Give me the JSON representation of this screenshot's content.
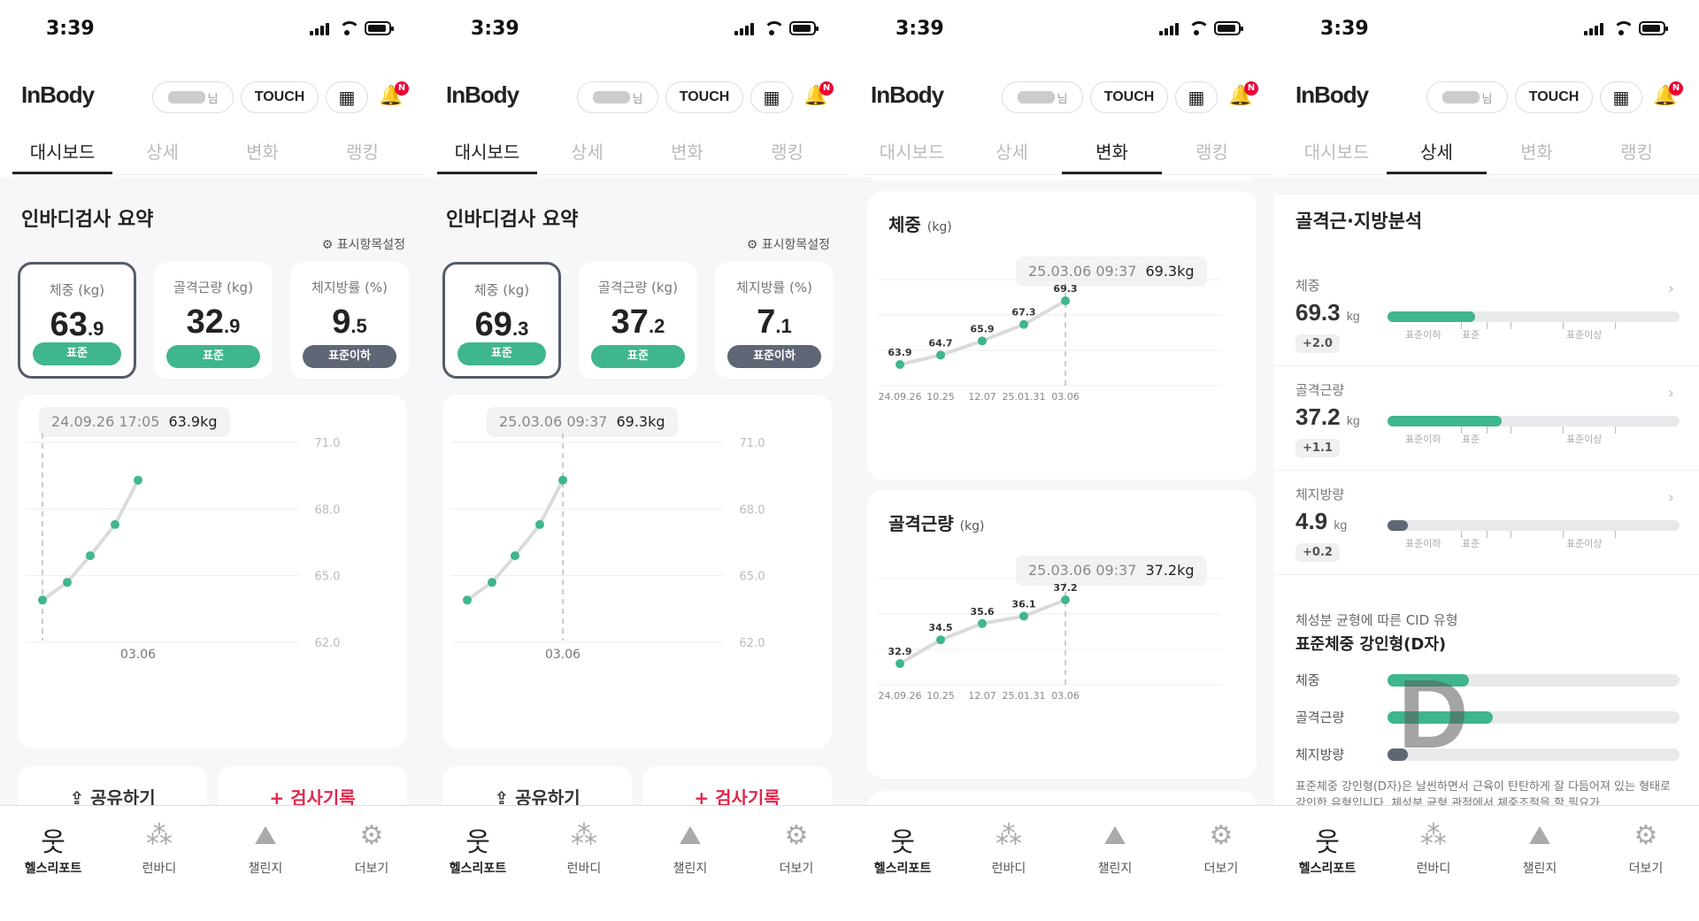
{
  "status": {
    "time": "3:39"
  },
  "header": {
    "logo": "InBody",
    "user_suffix": "님",
    "touch": "TOUCH",
    "notif_badge": "N"
  },
  "tabs": [
    "대시보드",
    "상세",
    "변화",
    "랭킹"
  ],
  "nav": [
    {
      "label": "헬스리포트",
      "icon": "body-icon"
    },
    {
      "label": "런바디",
      "icon": "run-icon"
    },
    {
      "label": "챌린지",
      "icon": "mountain-icon"
    },
    {
      "label": "더보기",
      "icon": "gear-icon"
    }
  ],
  "dashboard": {
    "title": "인바디검사 요약",
    "setting": "표시항목설정",
    "share": "공유하기",
    "record": "검사기록",
    "y_ticks": [
      "71.0",
      "68.0",
      "65.0",
      "62.0"
    ],
    "x_tick": "03.06",
    "chart_values": [
      63.9,
      64.7,
      65.9,
      67.3,
      69.3
    ],
    "screens": [
      {
        "metrics": [
          {
            "label": "체중 (kg)",
            "int": "63",
            "dec": ".9",
            "badge": "표준"
          },
          {
            "label": "골격근량 (kg)",
            "int": "32",
            "dec": ".9",
            "badge": "표준"
          },
          {
            "label": "체지방률 (%)",
            "int": "9",
            "dec": ".5",
            "badge": "표준이하"
          }
        ],
        "tip_date": "24.09.26 17:05",
        "tip_value": "63.9kg",
        "selected_index": 0
      },
      {
        "metrics": [
          {
            "label": "체중 (kg)",
            "int": "69",
            "dec": ".3",
            "badge": "표준"
          },
          {
            "label": "골격근량 (kg)",
            "int": "37",
            "dec": ".2",
            "badge": "표준"
          },
          {
            "label": "체지방률 (%)",
            "int": "7",
            "dec": ".1",
            "badge": "표준이하"
          }
        ],
        "tip_date": "25.03.06 09:37",
        "tip_value": "69.3kg",
        "selected_index": 4
      }
    ]
  },
  "change": {
    "weight": {
      "title": "체중",
      "unit": "(kg)",
      "tip_date": "25.03.06 09:37",
      "tip_value": "69.3kg",
      "x": [
        "24.09.26",
        "10.25",
        "12.07",
        "25.01.31",
        "03.06"
      ],
      "values": [
        63.9,
        64.7,
        65.9,
        67.3,
        69.3
      ],
      "labels": [
        "63.9",
        "64.7",
        "65.9",
        "67.3",
        "69.3"
      ]
    },
    "muscle": {
      "title": "골격근량",
      "unit": "(kg)",
      "tip_date": "25.03.06 09:37",
      "tip_value": "37.2kg",
      "x": [
        "24.09.26",
        "10.25",
        "12.07",
        "25.01.31",
        "03.06"
      ],
      "values": [
        32.9,
        34.5,
        35.6,
        36.1,
        37.2
      ],
      "labels": [
        "32.9",
        "34.5",
        "35.6",
        "36.1",
        "37.2"
      ]
    }
  },
  "detail": {
    "title": "골격근·지방분석",
    "rows": [
      {
        "label": "체중",
        "value": "69.3",
        "unit": "kg",
        "delta": "+2.0",
        "fill": 0.3,
        "color": "#3fb68b"
      },
      {
        "label": "골격근량",
        "value": "37.2",
        "unit": "kg",
        "delta": "+1.1",
        "fill": 0.39,
        "color": "#3fb68b"
      },
      {
        "label": "체지방량",
        "value": "4.9",
        "unit": "kg",
        "delta": "+0.2",
        "fill": 0.07,
        "color": "#5f6675"
      }
    ],
    "scale_labels": [
      "표준이하",
      "표준",
      "표준이상"
    ],
    "cid_sub": "체성분 균형에 따른 CID 유형",
    "cid_title": "표준체중 강인형(D자)",
    "cid_rows": [
      {
        "label": "체중",
        "fill": 0.28,
        "color": "#3fb68b"
      },
      {
        "label": "골격근량",
        "fill": 0.36,
        "color": "#3fb68b"
      },
      {
        "label": "체지방량",
        "fill": 0.07,
        "color": "#5f6675"
      }
    ],
    "cid_letter": "D",
    "cid_desc": "표준체중 강인형(D자)은 날씬하면서 근육이 탄탄하게 잘 다듬어져 있는 형태로 강인한 유형입니다. 체성분 균형 관점에서 체중조절을 할 필요가…"
  }
}
